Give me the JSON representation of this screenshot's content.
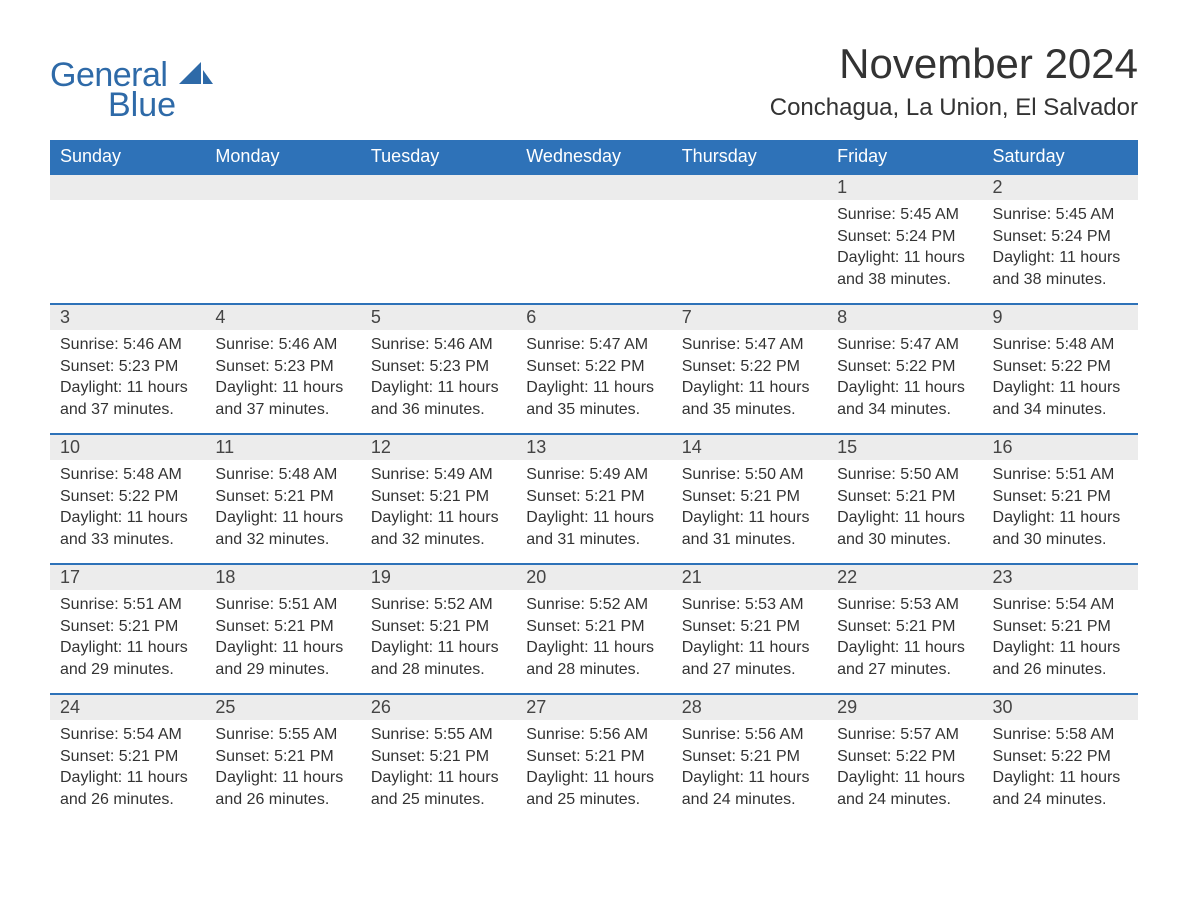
{
  "logo": {
    "text_general": "General",
    "text_blue": "Blue",
    "color": "#2e6aa8"
  },
  "title": "November 2024",
  "location": "Conchagua, La Union, El Salvador",
  "colors": {
    "header_bg": "#2e72b8",
    "header_text": "#ffffff",
    "daynum_bg": "#ececec",
    "border": "#2e72b8",
    "body_text": "#333333",
    "page_bg": "#ffffff"
  },
  "typography": {
    "title_fontsize": 42,
    "location_fontsize": 24,
    "header_fontsize": 18,
    "daynum_fontsize": 18,
    "body_fontsize": 16
  },
  "day_headers": [
    "Sunday",
    "Monday",
    "Tuesday",
    "Wednesday",
    "Thursday",
    "Friday",
    "Saturday"
  ],
  "weeks": [
    [
      {
        "n": "",
        "sunrise": "",
        "sunset": "",
        "daylight": ""
      },
      {
        "n": "",
        "sunrise": "",
        "sunset": "",
        "daylight": ""
      },
      {
        "n": "",
        "sunrise": "",
        "sunset": "",
        "daylight": ""
      },
      {
        "n": "",
        "sunrise": "",
        "sunset": "",
        "daylight": ""
      },
      {
        "n": "",
        "sunrise": "",
        "sunset": "",
        "daylight": ""
      },
      {
        "n": "1",
        "sunrise": "Sunrise: 5:45 AM",
        "sunset": "Sunset: 5:24 PM",
        "daylight": "Daylight: 11 hours and 38 minutes."
      },
      {
        "n": "2",
        "sunrise": "Sunrise: 5:45 AM",
        "sunset": "Sunset: 5:24 PM",
        "daylight": "Daylight: 11 hours and 38 minutes."
      }
    ],
    [
      {
        "n": "3",
        "sunrise": "Sunrise: 5:46 AM",
        "sunset": "Sunset: 5:23 PM",
        "daylight": "Daylight: 11 hours and 37 minutes."
      },
      {
        "n": "4",
        "sunrise": "Sunrise: 5:46 AM",
        "sunset": "Sunset: 5:23 PM",
        "daylight": "Daylight: 11 hours and 37 minutes."
      },
      {
        "n": "5",
        "sunrise": "Sunrise: 5:46 AM",
        "sunset": "Sunset: 5:23 PM",
        "daylight": "Daylight: 11 hours and 36 minutes."
      },
      {
        "n": "6",
        "sunrise": "Sunrise: 5:47 AM",
        "sunset": "Sunset: 5:22 PM",
        "daylight": "Daylight: 11 hours and 35 minutes."
      },
      {
        "n": "7",
        "sunrise": "Sunrise: 5:47 AM",
        "sunset": "Sunset: 5:22 PM",
        "daylight": "Daylight: 11 hours and 35 minutes."
      },
      {
        "n": "8",
        "sunrise": "Sunrise: 5:47 AM",
        "sunset": "Sunset: 5:22 PM",
        "daylight": "Daylight: 11 hours and 34 minutes."
      },
      {
        "n": "9",
        "sunrise": "Sunrise: 5:48 AM",
        "sunset": "Sunset: 5:22 PM",
        "daylight": "Daylight: 11 hours and 34 minutes."
      }
    ],
    [
      {
        "n": "10",
        "sunrise": "Sunrise: 5:48 AM",
        "sunset": "Sunset: 5:22 PM",
        "daylight": "Daylight: 11 hours and 33 minutes."
      },
      {
        "n": "11",
        "sunrise": "Sunrise: 5:48 AM",
        "sunset": "Sunset: 5:21 PM",
        "daylight": "Daylight: 11 hours and 32 minutes."
      },
      {
        "n": "12",
        "sunrise": "Sunrise: 5:49 AM",
        "sunset": "Sunset: 5:21 PM",
        "daylight": "Daylight: 11 hours and 32 minutes."
      },
      {
        "n": "13",
        "sunrise": "Sunrise: 5:49 AM",
        "sunset": "Sunset: 5:21 PM",
        "daylight": "Daylight: 11 hours and 31 minutes."
      },
      {
        "n": "14",
        "sunrise": "Sunrise: 5:50 AM",
        "sunset": "Sunset: 5:21 PM",
        "daylight": "Daylight: 11 hours and 31 minutes."
      },
      {
        "n": "15",
        "sunrise": "Sunrise: 5:50 AM",
        "sunset": "Sunset: 5:21 PM",
        "daylight": "Daylight: 11 hours and 30 minutes."
      },
      {
        "n": "16",
        "sunrise": "Sunrise: 5:51 AM",
        "sunset": "Sunset: 5:21 PM",
        "daylight": "Daylight: 11 hours and 30 minutes."
      }
    ],
    [
      {
        "n": "17",
        "sunrise": "Sunrise: 5:51 AM",
        "sunset": "Sunset: 5:21 PM",
        "daylight": "Daylight: 11 hours and 29 minutes."
      },
      {
        "n": "18",
        "sunrise": "Sunrise: 5:51 AM",
        "sunset": "Sunset: 5:21 PM",
        "daylight": "Daylight: 11 hours and 29 minutes."
      },
      {
        "n": "19",
        "sunrise": "Sunrise: 5:52 AM",
        "sunset": "Sunset: 5:21 PM",
        "daylight": "Daylight: 11 hours and 28 minutes."
      },
      {
        "n": "20",
        "sunrise": "Sunrise: 5:52 AM",
        "sunset": "Sunset: 5:21 PM",
        "daylight": "Daylight: 11 hours and 28 minutes."
      },
      {
        "n": "21",
        "sunrise": "Sunrise: 5:53 AM",
        "sunset": "Sunset: 5:21 PM",
        "daylight": "Daylight: 11 hours and 27 minutes."
      },
      {
        "n": "22",
        "sunrise": "Sunrise: 5:53 AM",
        "sunset": "Sunset: 5:21 PM",
        "daylight": "Daylight: 11 hours and 27 minutes."
      },
      {
        "n": "23",
        "sunrise": "Sunrise: 5:54 AM",
        "sunset": "Sunset: 5:21 PM",
        "daylight": "Daylight: 11 hours and 26 minutes."
      }
    ],
    [
      {
        "n": "24",
        "sunrise": "Sunrise: 5:54 AM",
        "sunset": "Sunset: 5:21 PM",
        "daylight": "Daylight: 11 hours and 26 minutes."
      },
      {
        "n": "25",
        "sunrise": "Sunrise: 5:55 AM",
        "sunset": "Sunset: 5:21 PM",
        "daylight": "Daylight: 11 hours and 26 minutes."
      },
      {
        "n": "26",
        "sunrise": "Sunrise: 5:55 AM",
        "sunset": "Sunset: 5:21 PM",
        "daylight": "Daylight: 11 hours and 25 minutes."
      },
      {
        "n": "27",
        "sunrise": "Sunrise: 5:56 AM",
        "sunset": "Sunset: 5:21 PM",
        "daylight": "Daylight: 11 hours and 25 minutes."
      },
      {
        "n": "28",
        "sunrise": "Sunrise: 5:56 AM",
        "sunset": "Sunset: 5:21 PM",
        "daylight": "Daylight: 11 hours and 24 minutes."
      },
      {
        "n": "29",
        "sunrise": "Sunrise: 5:57 AM",
        "sunset": "Sunset: 5:22 PM",
        "daylight": "Daylight: 11 hours and 24 minutes."
      },
      {
        "n": "30",
        "sunrise": "Sunrise: 5:58 AM",
        "sunset": "Sunset: 5:22 PM",
        "daylight": "Daylight: 11 hours and 24 minutes."
      }
    ]
  ]
}
